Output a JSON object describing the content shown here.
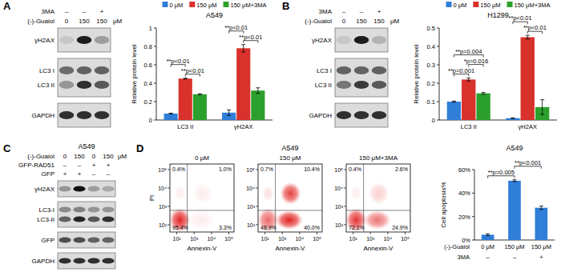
{
  "panel_labels": [
    "A",
    "B",
    "C",
    "D"
  ],
  "chart_data": [
    {
      "type": "bar",
      "title": "A549",
      "categories": [
        "LC3 II",
        "γH2AX"
      ],
      "series": [
        {
          "name": "0 μM",
          "color": "#2f7ed8",
          "values": [
            0.07,
            0.08
          ],
          "errors": [
            0.005,
            0.03
          ]
        },
        {
          "name": "150 μM",
          "color": "#d9312b",
          "values": [
            0.45,
            0.78
          ],
          "errors": [
            0.005,
            0.04
          ]
        },
        {
          "name": "150 μM+3MA",
          "color": "#2ca02c",
          "values": [
            0.28,
            0.32
          ],
          "errors": [
            0.005,
            0.03
          ]
        }
      ],
      "ylim": [
        0,
        1
      ],
      "yticks": [
        0,
        0.2,
        0.4,
        0.6,
        0.8,
        1
      ],
      "y_label": "Relative protein level",
      "legend": "top",
      "annotations": [
        {
          "text": "**p<0.01",
          "group": 0,
          "pair": [
            1,
            2
          ]
        },
        {
          "text": "**p<0.01",
          "group": 0,
          "pair": [
            0,
            1
          ]
        },
        {
          "text": "**p<0.01",
          "group": 1,
          "pair": [
            1,
            2
          ]
        },
        {
          "text": "**p<0.01",
          "group": 1,
          "pair": [
            0,
            1
          ]
        }
      ]
    },
    {
      "type": "bar",
      "title": "H1299",
      "categories": [
        "LC3 II",
        "γH2AX"
      ],
      "series": [
        {
          "name": "0 μM",
          "color": "#2f7ed8",
          "values": [
            0.1,
            0.01
          ],
          "errors": [
            0.003,
            0.002
          ]
        },
        {
          "name": "150 μM",
          "color": "#d9312b",
          "values": [
            0.22,
            0.45
          ],
          "errors": [
            0.008,
            0.01
          ]
        },
        {
          "name": "150 μM+3MA",
          "color": "#2ca02c",
          "values": [
            0.145,
            0.07
          ],
          "errors": [
            0.005,
            0.04
          ]
        }
      ],
      "ylim": [
        0,
        0.5
      ],
      "yticks": [
        0,
        0.1,
        0.2,
        0.3,
        0.4,
        0.5
      ],
      "y_label": "Relative protein level",
      "legend": "top",
      "annotations": [
        {
          "text": "**p=0.001",
          "group": 0,
          "pair": [
            0,
            1
          ]
        },
        {
          "text": "*p=0.016",
          "group": 0,
          "pair": [
            1,
            2
          ]
        },
        {
          "text": "**p=0.004",
          "group": 0,
          "pair": [
            0,
            2
          ]
        },
        {
          "text": "**p<0.01",
          "group": 1,
          "pair": [
            1,
            2
          ]
        },
        {
          "text": "**p<0.01",
          "group": 1,
          "pair": [
            0,
            1
          ]
        }
      ]
    },
    {
      "type": "bar",
      "title": "A549",
      "categories": [
        "0 μM",
        "150 μM",
        "150 μM"
      ],
      "values": [
        4.5,
        50.5,
        27.5
      ],
      "errors": [
        0.8,
        0.8,
        1.5
      ],
      "color": "#2f7ed8",
      "ylim": [
        0,
        60
      ],
      "yticks": [
        {
          "value": 0,
          "label": "0%"
        },
        {
          "value": 20,
          "label": "20%"
        },
        {
          "value": 40,
          "label": "40%"
        },
        {
          "value": 60,
          "label": "60%"
        }
      ],
      "y_label": "Cell apoptosis%",
      "category_row_label": "(-)-Guaiol",
      "extra_row": {
        "label": "3MA",
        "cells": [
          "–",
          "–",
          "+"
        ]
      },
      "annotations": [
        {
          "text": "**p=0.005",
          "pair": [
            0,
            1
          ]
        },
        {
          "text": "**p<0.001",
          "pair": [
            1,
            2
          ]
        }
      ]
    },
    {
      "type": "scatter",
      "title": "A549",
      "x_label": "Annexin-V",
      "y_label": "PI",
      "log": true,
      "xlim": [
        40,
        200000
      ],
      "ylim": [
        40,
        200000
      ],
      "xticks": [
        {
          "value": 100,
          "label": "10²"
        },
        {
          "value": 1000,
          "label": "10³"
        },
        {
          "value": 10000,
          "label": "10⁴"
        },
        {
          "value": 100000,
          "label": "10⁵"
        }
      ],
      "yticks": [
        {
          "value": 100,
          "label": "10²"
        },
        {
          "value": 1000,
          "label": "10³"
        },
        {
          "value": 10000,
          "label": "10⁴"
        },
        {
          "value": 100000,
          "label": "10⁵"
        }
      ],
      "gate": {
        "x": 400,
        "y": 600
      },
      "plots": [
        {
          "title": "0 μM",
          "quadrants": {
            "values": [
              0.4,
              1.0,
              95.4,
              3.3
            ],
            "value_labels": [
              "0.4%",
              "1.0%",
              "95.4%",
              "3.3%"
            ]
          }
        },
        {
          "title": "150 μM",
          "quadrants": {
            "values": [
              0.7,
              10.4,
              48.9,
              40.0
            ],
            "value_labels": [
              "0.7%",
              "10.4%",
              "48.9%",
              "40.0%"
            ]
          }
        },
        {
          "title": "150 μM+3MA",
          "quadrants": {
            "values": [
              0.4,
              2.6,
              72.1,
              24.9
            ],
            "value_labels": [
              "0.4%",
              "2.6%",
              "72.1%",
              "24.9%"
            ]
          }
        }
      ]
    }
  ],
  "blots": [
    {
      "header": [
        {
          "label": "3MA",
          "cells": [
            "–",
            "–",
            "+"
          ]
        },
        {
          "label": "(-)-Guaiol",
          "cells": [
            "0",
            "150",
            "150"
          ],
          "unit": "μM"
        }
      ],
      "boxes": [
        {
          "rows": [
            {
              "label": "γH2AX",
              "intensity": [
                0.1,
                0.95,
                0.3
              ]
            }
          ]
        },
        {
          "rows": [
            {
              "label": "LC3 I",
              "intensity": [
                0.55,
                0.6,
                0.6
              ]
            },
            {
              "label": "LC3 II",
              "intensity": [
                0.35,
                0.85,
                0.65
              ]
            }
          ]
        },
        {
          "rows": [
            {
              "label": "GAPDH",
              "intensity": [
                0.85,
                0.85,
                0.85
              ]
            }
          ]
        }
      ]
    },
    {
      "header": [
        {
          "label": "3MA",
          "cells": [
            "–",
            "–",
            "+"
          ]
        },
        {
          "label": "(-)-Guaiol",
          "cells": [
            "0",
            "150",
            "150"
          ],
          "unit": "μM"
        }
      ],
      "boxes": [
        {
          "rows": [
            {
              "label": "γH2AX",
              "intensity": [
                0.1,
                0.95,
                0.2
              ]
            }
          ]
        },
        {
          "rows": [
            {
              "label": "LC3 I",
              "intensity": [
                0.6,
                0.6,
                0.6
              ]
            },
            {
              "label": "LC3 II",
              "intensity": [
                0.5,
                0.8,
                0.65
              ]
            }
          ]
        },
        {
          "rows": [
            {
              "label": "GAPDH",
              "intensity": [
                0.85,
                0.85,
                0.85
              ]
            }
          ]
        }
      ]
    },
    {
      "title": "A549",
      "header": [
        {
          "label": "(-)-Guaiol",
          "cells": [
            "0",
            "150",
            "0",
            "150"
          ],
          "unit": "μM"
        },
        {
          "label": "GFP-RAD51",
          "cells": [
            "–",
            "–",
            "+",
            "+"
          ]
        },
        {
          "label": "GFP",
          "cells": [
            "+",
            "+",
            "–",
            "–"
          ]
        }
      ],
      "boxes": [
        {
          "rows": [
            {
              "label": "γH2AX",
              "intensity": [
                0.35,
                1,
                0.3,
                0.25
              ]
            }
          ]
        },
        {
          "rows": [
            {
              "label": "LC3-I",
              "intensity": [
                0.4,
                0.45,
                0.35,
                0.35
              ]
            },
            {
              "label": "LC3-II",
              "intensity": [
                0.6,
                0.9,
                0.65,
                0.85
              ]
            }
          ]
        },
        {
          "rows": [
            {
              "label": "GFP",
              "intensity": [
                0.7,
                0.7,
                0.6,
                0.6
              ]
            }
          ]
        },
        {
          "rows": [
            {
              "label": "GAPDH",
              "intensity": [
                0.85,
                0.85,
                0.85,
                0.85
              ]
            }
          ]
        }
      ]
    }
  ]
}
